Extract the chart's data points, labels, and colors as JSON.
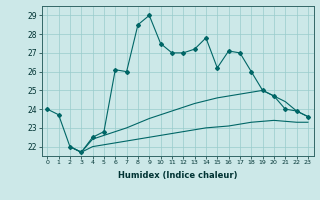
{
  "xlabel": "Humidex (Indice chaleur)",
  "background_color": "#cce8e8",
  "grid_color": "#99cccc",
  "line_color": "#006666",
  "xlim": [
    -0.5,
    23.5
  ],
  "ylim": [
    21.5,
    29.5
  ],
  "xtick_labels": [
    "0",
    "1",
    "2",
    "3",
    "4",
    "5",
    "6",
    "7",
    "8",
    "9",
    "10",
    "11",
    "12",
    "13",
    "14",
    "15",
    "16",
    "17",
    "18",
    "19",
    "20",
    "21",
    "22",
    "23"
  ],
  "ytick_labels": [
    "22",
    "23",
    "24",
    "25",
    "26",
    "27",
    "28",
    "29"
  ],
  "series1_x": [
    0,
    1,
    2,
    3,
    4,
    5,
    6,
    7,
    8,
    9,
    10,
    11,
    12,
    13,
    14,
    15,
    16,
    17,
    18,
    19,
    20,
    21,
    22,
    23
  ],
  "series1_y": [
    24.0,
    23.7,
    22.0,
    21.7,
    22.5,
    22.8,
    26.1,
    26.0,
    28.5,
    29.0,
    27.5,
    27.0,
    27.0,
    27.2,
    27.8,
    26.2,
    27.1,
    27.0,
    26.0,
    25.0,
    24.7,
    24.0,
    23.9,
    23.6
  ],
  "series2_full_x": [
    2,
    3,
    4,
    5,
    6,
    7,
    8,
    9,
    10,
    11,
    12,
    13,
    14,
    15,
    16,
    17,
    18,
    19,
    20,
    21,
    22,
    23
  ],
  "series2_full_y": [
    22.0,
    21.7,
    22.4,
    22.6,
    22.8,
    23.0,
    23.25,
    23.5,
    23.7,
    23.9,
    24.1,
    24.3,
    24.45,
    24.6,
    24.7,
    24.8,
    24.9,
    25.0,
    24.7,
    24.4,
    23.9,
    23.6
  ],
  "series3_x": [
    2,
    3,
    4,
    5,
    6,
    7,
    8,
    9,
    10,
    11,
    12,
    13,
    14,
    15,
    16,
    17,
    18,
    19,
    20,
    21,
    22,
    23
  ],
  "series3_y": [
    22.0,
    21.7,
    22.0,
    22.1,
    22.2,
    22.3,
    22.4,
    22.5,
    22.6,
    22.7,
    22.8,
    22.9,
    23.0,
    23.05,
    23.1,
    23.2,
    23.3,
    23.35,
    23.4,
    23.35,
    23.3,
    23.3
  ]
}
